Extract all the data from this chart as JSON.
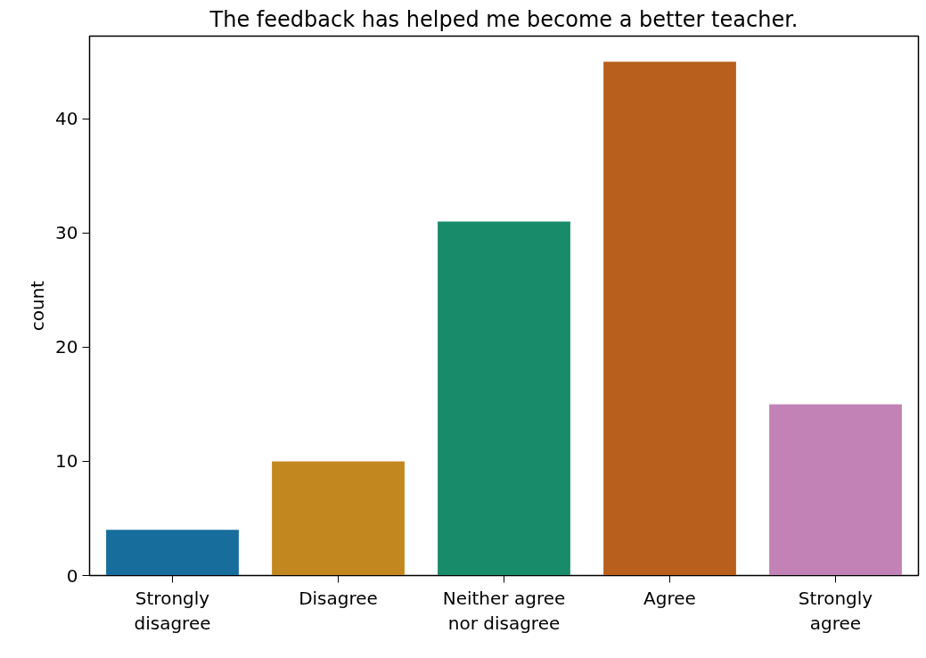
{
  "chart_data": {
    "type": "bar",
    "title": "The feedback has helped me become a better teacher.",
    "ylabel": "count",
    "categories": [
      "Strongly\ndisagree",
      "Disagree",
      "Neither agree\nnor disagree",
      "Agree",
      "Strongly\nagree"
    ],
    "values": [
      4,
      10,
      31,
      45,
      15
    ],
    "colors": [
      "#176d9c",
      "#c3871f",
      "#188b6a",
      "#b85f1d",
      "#c282b5"
    ],
    "ylim": [
      0,
      47.25
    ],
    "yticks": [
      0,
      10,
      20,
      30,
      40
    ],
    "grid": false
  }
}
